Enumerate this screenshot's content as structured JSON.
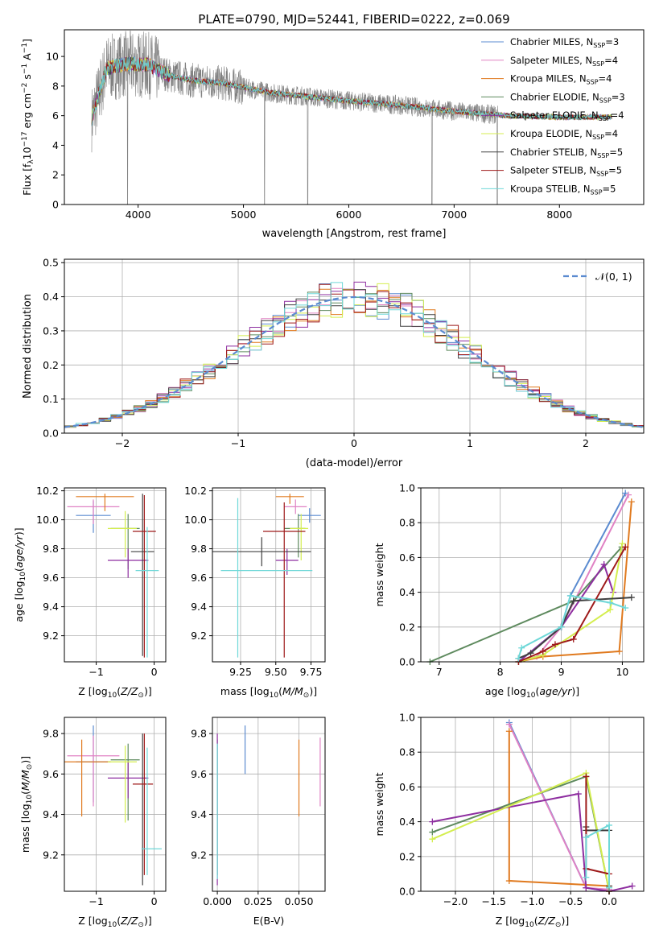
{
  "figure_title": "PLATE=0790, MJD=52441, FIBERID=0222, z=0.069",
  "colors": {
    "Chabrier MILES": "#5b8bd0",
    "Salpeter MILES": "#e082c4",
    "Kroupa MILES": "#e07a1f",
    "Chabrier ELODIE": "#5e8a5e",
    "Salpeter ELODIE": "#8e2ea0",
    "Kroupa ELODIE": "#d4ee4f",
    "Chabrier STELIB": "#404040",
    "Salpeter STELIB": "#9e1a1a",
    "Kroupa STELIB": "#6fd8d8",
    "data": "#808080",
    "normal": "#5b8bd0",
    "grid": "#b0b0b0"
  },
  "chart_data": [
    {
      "id": "spectrum",
      "type": "line",
      "xlabel": "wavelength [Angstrom, rest frame]",
      "ylabel": "Flux [f_λ10^-17 erg cm^-2 s^-1 A^-1]",
      "xlim": [
        3300,
        8800
      ],
      "ylim": [
        0,
        11.8
      ],
      "xticks": [
        4000,
        5000,
        6000,
        7000,
        8000
      ],
      "yticks": [
        0,
        2,
        4,
        6,
        8,
        10
      ],
      "grid": false,
      "legend_position": "upper right",
      "legend": [
        {
          "label": "Chabrier MILES, N",
          "sub": "SSP",
          "tail": "=3"
        },
        {
          "label": "Salpeter MILES, N",
          "sub": "SSP",
          "tail": "=4"
        },
        {
          "label": "Kroupa MILES, N",
          "sub": "SSP",
          "tail": "=4"
        },
        {
          "label": "Chabrier ELODIE, N",
          "sub": "SSP",
          "tail": "=3"
        },
        {
          "label": "Salpeter ELODIE, N",
          "sub": "SSP",
          "tail": "=4"
        },
        {
          "label": "Kroupa ELODIE, N",
          "sub": "SSP",
          "tail": "=4"
        },
        {
          "label": "Chabrier STELIB, N",
          "sub": "SSP",
          "tail": "=5"
        },
        {
          "label": "Salpeter STELIB, N",
          "sub": "SSP",
          "tail": "=5"
        },
        {
          "label": "Kroupa STELIB, N",
          "sub": "SSP",
          "tail": "=5"
        }
      ],
      "model_continuum": {
        "x": [
          3560,
          3700,
          3900,
          4100,
          4300,
          4500,
          4800,
          5000,
          5300,
          5600,
          6000,
          6500,
          7000,
          7500,
          8000,
          8500
        ],
        "y": [
          5.8,
          9.2,
          9.5,
          9.4,
          8.7,
          8.4,
          8.2,
          7.9,
          7.5,
          7.3,
          7.0,
          6.7,
          6.3,
          6.0,
          5.9,
          5.9
        ]
      },
      "observed_noise_amplitude": 1.2
    },
    {
      "id": "residual_hist",
      "type": "bar",
      "xlabel": "(data-model)/error",
      "ylabel": "Normed distribution",
      "xlim": [
        -2.5,
        2.5
      ],
      "ylim": [
        0,
        0.51
      ],
      "xticks": [
        -2,
        -1,
        0,
        1,
        2
      ],
      "yticks": [
        0,
        0.1,
        0.2,
        0.3,
        0.4,
        0.5
      ],
      "grid": true,
      "legend_position": "upper right",
      "legend": [
        "𝒩(0, 1)"
      ],
      "bin_width": 0.1,
      "note": "step histograms for each of the 9 models, approximately following the standard normal curve"
    },
    {
      "id": "age_vs_Z",
      "type": "scatter",
      "xlabel": "Z [log10(Z/Z_⊙)]",
      "ylabel": "age  [log10(age/yr)]",
      "xlim": [
        -1.55,
        0.2
      ],
      "ylim": [
        9.02,
        10.22
      ],
      "xticks": [
        -1,
        0
      ],
      "yticks": [
        9.2,
        9.4,
        9.6,
        9.8,
        10.0,
        10.2
      ],
      "grid": true,
      "points": [
        {
          "m": "Chabrier MILES",
          "x": -1.05,
          "y": 10.03,
          "xerr": [
            0.3,
            0.3
          ],
          "yerr": [
            0.12,
            0.1
          ]
        },
        {
          "m": "Salpeter MILES",
          "x": -1.05,
          "y": 10.09,
          "xerr": [
            0.45,
            0.45
          ],
          "yerr": [
            0.12,
            0.05
          ]
        },
        {
          "m": "Kroupa MILES",
          "x": -0.85,
          "y": 10.16,
          "xerr": [
            0.5,
            0.5
          ],
          "yerr": [
            0.1,
            0.02
          ]
        },
        {
          "m": "Chabrier ELODIE",
          "x": -0.45,
          "y": 9.94,
          "xerr": [
            0.3,
            0.2
          ],
          "yerr": [
            0.28,
            0.1
          ]
        },
        {
          "m": "Salpeter ELODIE",
          "x": -0.45,
          "y": 9.72,
          "xerr": [
            0.35,
            0.35
          ],
          "yerr": [
            0.12,
            0.08
          ]
        },
        {
          "m": "Kroupa ELODIE",
          "x": -0.5,
          "y": 9.94,
          "xerr": [
            0.3,
            0.2
          ],
          "yerr": [
            0.2,
            0.12
          ]
        },
        {
          "m": "Chabrier STELIB",
          "x": -0.2,
          "y": 9.78,
          "xerr": [
            0.2,
            0.2
          ],
          "yerr": [
            0.72,
            0.4
          ]
        },
        {
          "m": "Salpeter STELIB",
          "x": -0.17,
          "y": 9.92,
          "xerr": [
            0.2,
            0.2
          ],
          "yerr": [
            0.87,
            0.25
          ]
        },
        {
          "m": "Kroupa STELIB",
          "x": -0.12,
          "y": 9.65,
          "xerr": [
            0.2,
            0.2
          ],
          "yerr": [
            0.6,
            0.3
          ]
        }
      ]
    },
    {
      "id": "age_vs_mass",
      "type": "scatter",
      "xlabel": "mass [log10(M/M_⊙)]",
      "ylabel": "",
      "xlim": [
        9.05,
        9.85
      ],
      "ylim": [
        9.02,
        10.22
      ],
      "xticks": [
        9.25,
        9.5,
        9.75
      ],
      "yticks": [
        9.2,
        9.4,
        9.6,
        9.8,
        10.0,
        10.2
      ],
      "grid": true,
      "points": [
        {
          "m": "Chabrier MILES",
          "x": 9.74,
          "y": 10.03,
          "xerr": [
            0.08,
            0.08
          ],
          "yerr": [
            0.05,
            0.05
          ]
        },
        {
          "m": "Salpeter MILES",
          "x": 9.64,
          "y": 10.09,
          "xerr": [
            0.08,
            0.08
          ],
          "yerr": [
            0.05,
            0.05
          ]
        },
        {
          "m": "Kroupa MILES",
          "x": 9.6,
          "y": 10.16,
          "xerr": [
            0.1,
            0.1
          ],
          "yerr": [
            0.05,
            0.02
          ]
        },
        {
          "m": "Chabrier ELODIE",
          "x": 9.66,
          "y": 9.94,
          "xerr": [
            0.1,
            0.05
          ],
          "yerr": [
            0.2,
            0.1
          ]
        },
        {
          "m": "Salpeter ELODIE",
          "x": 9.58,
          "y": 9.72,
          "xerr": [
            0.08,
            0.08
          ],
          "yerr": [
            0.1,
            0.08
          ]
        },
        {
          "m": "Kroupa ELODIE",
          "x": 9.68,
          "y": 9.94,
          "xerr": [
            0.08,
            0.05
          ],
          "yerr": [
            0.22,
            0.1
          ]
        },
        {
          "m": "Chabrier STELIB",
          "x": 9.4,
          "y": 9.78,
          "xerr": [
            0.35,
            0.35
          ],
          "yerr": [
            0.1,
            0.1
          ]
        },
        {
          "m": "Salpeter STELIB",
          "x": 9.56,
          "y": 9.92,
          "xerr": [
            0.15,
            0.15
          ],
          "yerr": [
            0.87,
            0.2
          ]
        },
        {
          "m": "Kroupa STELIB",
          "x": 9.23,
          "y": 9.65,
          "xerr": [
            0.12,
            0.53
          ],
          "yerr": [
            0.6,
            0.5
          ]
        }
      ]
    },
    {
      "id": "massweight_vs_age",
      "type": "line",
      "xlabel": "age  [log10(age/yr)]",
      "ylabel": "mass weight",
      "xlim": [
        6.7,
        10.35
      ],
      "ylim": [
        0,
        1.0
      ],
      "xticks": [
        7,
        8,
        9,
        10
      ],
      "yticks": [
        0.0,
        0.2,
        0.4,
        0.6,
        0.8,
        1.0
      ],
      "grid": true,
      "series": [
        {
          "m": "Chabrier MILES",
          "x": [
            8.3,
            9.0,
            9.15,
            10.05
          ],
          "y": [
            0.0,
            0.2,
            0.38,
            0.97
          ]
        },
        {
          "m": "Salpeter MILES",
          "x": [
            8.3,
            8.6,
            9.0,
            10.1
          ],
          "y": [
            0.0,
            0.03,
            0.2,
            0.96
          ]
        },
        {
          "m": "Kroupa MILES",
          "x": [
            8.3,
            8.7,
            9.95,
            10.15
          ],
          "y": [
            0.0,
            0.03,
            0.06,
            0.92
          ]
        },
        {
          "m": "Chabrier ELODIE",
          "x": [
            6.85,
            9.2,
            9.99
          ],
          "y": [
            0.0,
            0.35,
            0.66
          ]
        },
        {
          "m": "Salpeter ELODIE",
          "x": [
            8.3,
            9.0,
            9.7,
            9.85
          ],
          "y": [
            0.0,
            0.2,
            0.56,
            0.4
          ]
        },
        {
          "m": "Kroupa ELODIE",
          "x": [
            8.3,
            8.7,
            9.8,
            10.0
          ],
          "y": [
            0.0,
            0.04,
            0.3,
            0.68
          ]
        },
        {
          "m": "Chabrier STELIB",
          "x": [
            8.3,
            8.5,
            9.0,
            9.2,
            10.15
          ],
          "y": [
            0.02,
            0.05,
            0.2,
            0.35,
            0.37
          ]
        },
        {
          "m": "Salpeter STELIB",
          "x": [
            8.3,
            8.7,
            8.9,
            9.2,
            10.05
          ],
          "y": [
            0.0,
            0.06,
            0.1,
            0.13,
            0.66
          ]
        },
        {
          "m": "Kroupa STELIB",
          "x": [
            8.3,
            8.35,
            9.0,
            9.15,
            9.8,
            10.05
          ],
          "y": [
            0.02,
            0.08,
            0.2,
            0.38,
            0.34,
            0.31
          ]
        }
      ]
    },
    {
      "id": "mass_vs_Z",
      "type": "scatter",
      "xlabel": "Z [log10(Z/Z_⊙)]",
      "ylabel": "mass [log10(M/M_⊙)]",
      "xlim": [
        -1.55,
        0.2
      ],
      "ylim": [
        9.02,
        9.88
      ],
      "xticks": [
        -1,
        0
      ],
      "yticks": [
        9.2,
        9.4,
        9.6,
        9.8
      ],
      "grid": true,
      "points": [
        {
          "m": "Chabrier MILES",
          "x": -1.05,
          "y": 9.66,
          "xerr": [
            0.3,
            0.3
          ],
          "yerr": [
            0.2,
            0.18
          ]
        },
        {
          "m": "Salpeter MILES",
          "x": -1.05,
          "y": 9.69,
          "xerr": [
            0.45,
            0.45
          ],
          "yerr": [
            0.25,
            0.1
          ]
        },
        {
          "m": "Kroupa MILES",
          "x": -1.25,
          "y": 9.66,
          "xerr": [
            0.3,
            0.5
          ],
          "yerr": [
            0.27,
            0.11
          ]
        },
        {
          "m": "Chabrier ELODIE",
          "x": -0.45,
          "y": 9.67,
          "xerr": [
            0.3,
            0.2
          ],
          "yerr": [
            0.3,
            0.08
          ]
        },
        {
          "m": "Salpeter ELODIE",
          "x": -0.45,
          "y": 9.58,
          "xerr": [
            0.35,
            0.35
          ],
          "yerr": [
            0.1,
            0.08
          ]
        },
        {
          "m": "Kroupa ELODIE",
          "x": -0.5,
          "y": 9.66,
          "xerr": [
            0.3,
            0.2
          ],
          "yerr": [
            0.3,
            0.08
          ]
        },
        {
          "m": "Chabrier STELIB",
          "x": -0.2,
          "y": 9.55,
          "xerr": [
            0.0,
            0.0
          ],
          "yerr": [
            0.5,
            0.25
          ]
        },
        {
          "m": "Salpeter STELIB",
          "x": -0.17,
          "y": 9.55,
          "xerr": [
            0.2,
            0.15
          ],
          "yerr": [
            0.45,
            0.25
          ]
        },
        {
          "m": "Kroupa STELIB",
          "x": -0.12,
          "y": 9.23,
          "xerr": [
            0.1,
            0.25
          ],
          "yerr": [
            0.13,
            0.5
          ]
        }
      ]
    },
    {
      "id": "mass_vs_ebv",
      "type": "scatter",
      "xlabel": "E(B-V)",
      "ylabel": "",
      "xlim": [
        -0.003,
        0.066
      ],
      "ylim": [
        9.02,
        9.88
      ],
      "xticks": [
        0.0,
        0.025,
        0.05
      ],
      "yticks": [
        9.2,
        9.4,
        9.6,
        9.8
      ],
      "grid": true,
      "points": [
        {
          "m": "Chabrier MILES",
          "x": 0.017,
          "y": 9.66,
          "xerr": [
            0,
            0
          ],
          "yerr": [
            0.06,
            0.18
          ]
        },
        {
          "m": "Salpeter MILES",
          "x": 0.063,
          "y": 9.6,
          "xerr": [
            0,
            0
          ],
          "yerr": [
            0.16,
            0.18
          ]
        },
        {
          "m": "Kroupa MILES",
          "x": 0.05,
          "y": 9.58,
          "xerr": [
            0,
            0
          ],
          "yerr": [
            0.19,
            0.19
          ]
        },
        {
          "m": "Chabrier ELODIE",
          "x": 0.0,
          "y": 9.5,
          "xerr": [
            0,
            0
          ],
          "yerr": [
            0.4,
            0.27
          ]
        },
        {
          "m": "Salpeter ELODIE",
          "x": 0.0,
          "y": 9.5,
          "xerr": [
            0,
            0
          ],
          "yerr": [
            0.45,
            0.3
          ]
        },
        {
          "m": "Kroupa STELIB",
          "x": 0.0,
          "y": 9.45,
          "xerr": [
            0,
            0
          ],
          "yerr": [
            0.37,
            0.3
          ]
        }
      ]
    },
    {
      "id": "massweight_vs_Z",
      "type": "line",
      "xlabel": "Z [log10(Z/Z_⊙)]",
      "ylabel": "mass weight",
      "xlim": [
        -2.45,
        0.45
      ],
      "ylim": [
        0,
        1.0
      ],
      "xticks": [
        -2.0,
        -1.5,
        -1.0,
        -0.5,
        0.0
      ],
      "yticks": [
        0.0,
        0.2,
        0.4,
        0.6,
        0.8,
        1.0
      ],
      "grid": true,
      "series": [
        {
          "m": "Chabrier MILES",
          "x": [
            -1.3,
            -0.3,
            0.0
          ],
          "y": [
            0.97,
            0.02,
            0.0
          ]
        },
        {
          "m": "Salpeter MILES",
          "x": [
            -1.3,
            -0.3,
            0.0
          ],
          "y": [
            0.96,
            0.02,
            0.01
          ]
        },
        {
          "m": "Kroupa MILES",
          "x": [
            -1.3,
            -1.3,
            0.0,
            0.0
          ],
          "y": [
            0.92,
            0.06,
            0.03,
            0.0
          ]
        },
        {
          "m": "Chabrier ELODIE",
          "x": [
            -2.3,
            -0.3,
            0.0
          ],
          "y": [
            0.34,
            0.66,
            0.0
          ]
        },
        {
          "m": "Salpeter ELODIE",
          "x": [
            -2.3,
            -0.4,
            -0.3,
            0.0,
            0.3
          ],
          "y": [
            0.4,
            0.56,
            0.02,
            0.0,
            0.03
          ]
        },
        {
          "m": "Kroupa ELODIE",
          "x": [
            -2.3,
            -0.3,
            0.0
          ],
          "y": [
            0.3,
            0.68,
            0.0
          ]
        },
        {
          "m": "Chabrier STELIB",
          "x": [
            -0.3,
            -0.3,
            0.0,
            0.0
          ],
          "y": [
            0.37,
            0.35,
            0.35,
            0.03
          ]
        },
        {
          "m": "Salpeter STELIB",
          "x": [
            -0.3,
            -0.3,
            0.0,
            0.0
          ],
          "y": [
            0.66,
            0.13,
            0.1,
            0.0
          ]
        },
        {
          "m": "Kroupa STELIB",
          "x": [
            -0.3,
            -0.3,
            0.0,
            0.0
          ],
          "y": [
            0.08,
            0.31,
            0.38,
            0.02
          ]
        }
      ]
    }
  ]
}
